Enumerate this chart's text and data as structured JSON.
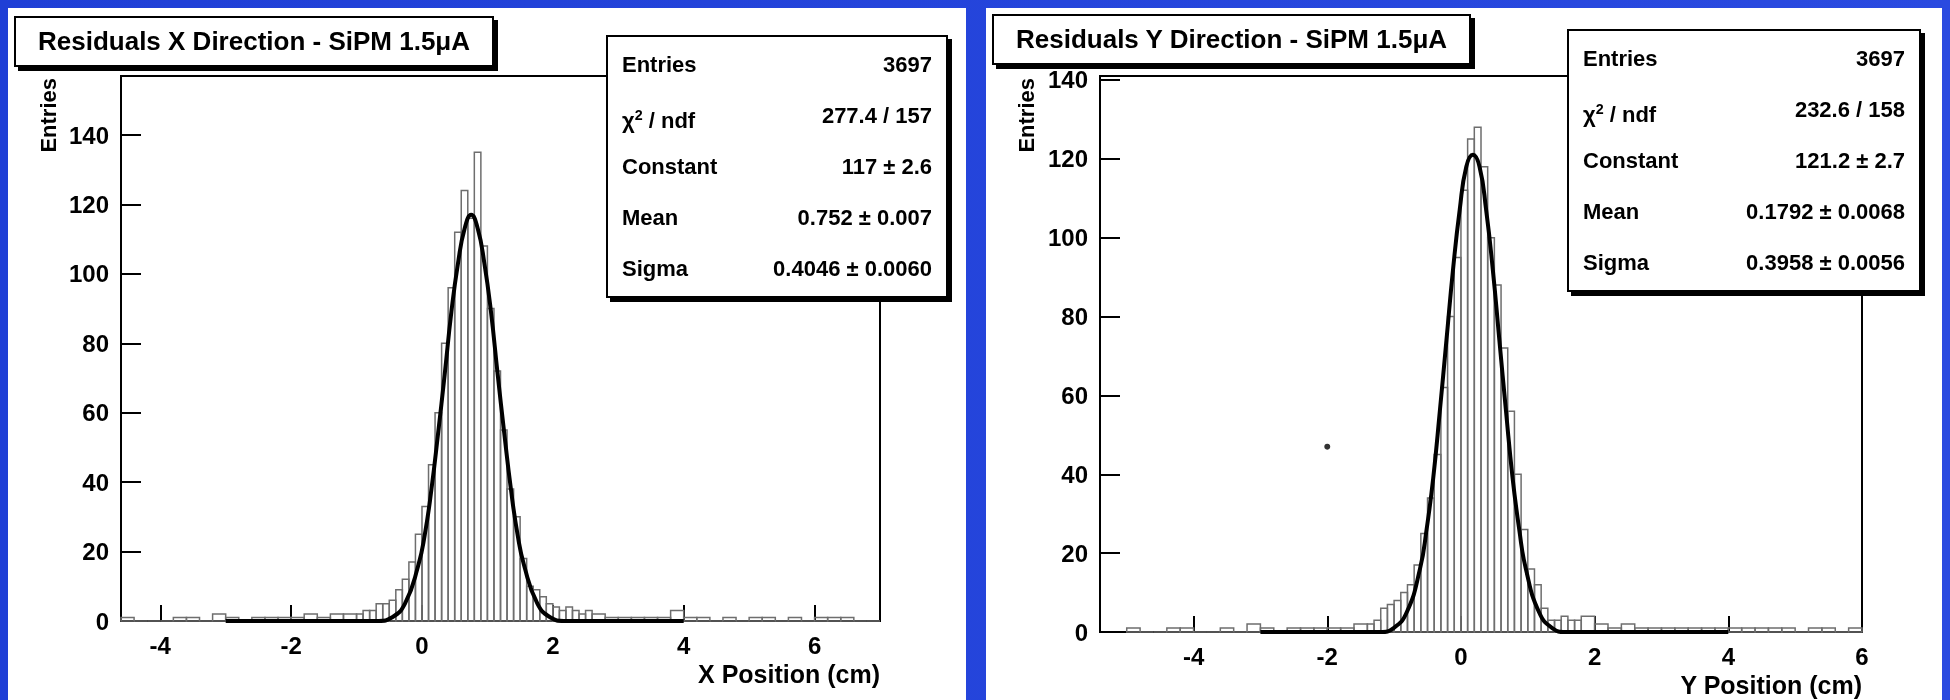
{
  "chart_data": [
    {
      "type": "histogram",
      "title": "Residuals X Direction - SiPM 1.5μA",
      "xlabel": "X Position (cm)",
      "ylabel": "Entries",
      "xlim": [
        -4.6,
        7.0
      ],
      "ylim": [
        0,
        157
      ],
      "xticks": [
        -4,
        -2,
        0,
        2,
        4,
        6
      ],
      "yticks": [
        0,
        20,
        40,
        60,
        80,
        100,
        120,
        140
      ],
      "grid": false,
      "annotations": [
        "Entries",
        "3697",
        "χ$^{2}$ / ndf",
        "277.4 / 157",
        "Constant",
        "117 ± 2.6",
        "Mean",
        "0.752 ± 0.007",
        "Sigma",
        "0.4046 ± 0.0060"
      ],
      "series": [
        {
          "color": "#6e6e6e",
          "bins": [
            -4.6,
            -4.4,
            -4.2,
            -4.0,
            -3.8,
            -3.6,
            -3.4,
            -3.2,
            -3.0,
            -2.8,
            -2.6,
            -2.4,
            -2.2,
            -2.0,
            -1.8,
            -1.6,
            -1.4,
            -1.2,
            -1.0,
            -0.9,
            -0.8,
            -0.7,
            -0.6,
            -0.5,
            -0.4,
            -0.3,
            -0.2,
            -0.1,
            0.0,
            0.1,
            0.2,
            0.3,
            0.4,
            0.5,
            0.6,
            0.7,
            0.8,
            0.9,
            1.0,
            1.1,
            1.2,
            1.3,
            1.4,
            1.5,
            1.6,
            1.7,
            1.8,
            1.9,
            2.0,
            2.1,
            2.2,
            2.3,
            2.4,
            2.5,
            2.6,
            2.8,
            3.0,
            3.2,
            3.4,
            3.6,
            3.8,
            4.0,
            4.2,
            4.4,
            4.6,
            4.8,
            5.0,
            5.2,
            5.4,
            5.6,
            5.8,
            6.0,
            6.2,
            6.4,
            6.6,
            6.8,
            7.0
          ],
          "values": [
            1,
            0,
            0,
            0,
            1,
            1,
            0,
            2,
            1,
            0,
            1,
            1,
            1,
            1,
            2,
            1,
            2,
            2,
            2,
            3,
            3,
            5,
            5,
            6,
            9,
            12,
            17,
            25,
            33,
            45,
            60,
            80,
            96,
            112,
            124,
            116,
            135,
            108,
            90,
            72,
            55,
            38,
            30,
            18,
            10,
            9,
            7,
            5,
            4,
            3,
            4,
            3,
            2,
            3,
            2,
            1,
            1,
            1,
            1,
            1,
            3,
            1,
            1,
            0,
            1,
            0,
            1,
            1,
            0,
            1,
            0,
            1,
            1,
            1,
            0,
            0
          ]
        },
        {
          "type": "line",
          "color": "#000000",
          "x": [
            -3.0,
            -0.866,
            -0.664,
            -0.462,
            -0.26,
            -0.057,
            0.044,
            0.145,
            0.246,
            0.347,
            0.449,
            0.55,
            0.651,
            0.752,
            0.853,
            0.954,
            1.055,
            1.157,
            1.258,
            1.359,
            1.46,
            1.561,
            1.764,
            1.966,
            2.168,
            2.37,
            4.0
          ],
          "values": [
            0,
            0,
            0,
            1,
            5,
            16,
            25,
            38,
            54,
            71,
            89,
            103,
            113,
            117,
            113,
            103,
            89,
            71,
            54,
            38,
            25,
            16,
            5,
            1,
            0,
            0,
            0
          ]
        }
      ]
    },
    {
      "type": "histogram",
      "title": "Residuals Y Direction - SiPM 1.5μA",
      "xlabel": "Y Position (cm)",
      "ylabel": "Entries",
      "xlim": [
        -5.4,
        6.0
      ],
      "ylim": [
        0,
        141
      ],
      "xticks": [
        -4,
        -2,
        0,
        2,
        4,
        6
      ],
      "yticks": [
        0,
        20,
        40,
        60,
        80,
        100,
        120,
        140
      ],
      "grid": false,
      "annotations": [
        "Entries",
        "3697",
        "χ$^{2}$ / ndf",
        "232.6 / 158",
        "Constant",
        "121.2 ± 2.7",
        "Mean",
        "0.1792 ± 0.0068",
        "Sigma",
        "0.3958 ± 0.0056"
      ],
      "series": [
        {
          "color": "#6e6e6e",
          "bins": [
            -5.0,
            -4.8,
            -4.6,
            -4.4,
            -4.2,
            -4.0,
            -3.8,
            -3.6,
            -3.4,
            -3.2,
            -3.0,
            -2.8,
            -2.6,
            -2.4,
            -2.2,
            -2.0,
            -1.8,
            -1.6,
            -1.4,
            -1.3,
            -1.2,
            -1.1,
            -1.0,
            -0.9,
            -0.8,
            -0.7,
            -0.6,
            -0.5,
            -0.4,
            -0.3,
            -0.2,
            -0.1,
            0.0,
            0.1,
            0.2,
            0.3,
            0.4,
            0.5,
            0.6,
            0.7,
            0.8,
            0.9,
            1.0,
            1.1,
            1.2,
            1.3,
            1.4,
            1.5,
            1.6,
            1.7,
            1.8,
            2.0,
            2.2,
            2.4,
            2.6,
            2.8,
            3.0,
            3.2,
            3.4,
            3.6,
            3.8,
            4.0,
            4.2,
            4.4,
            4.6,
            4.8,
            5.0,
            5.2,
            5.4,
            5.6,
            5.8,
            6.0
          ],
          "values": [
            1,
            0,
            0,
            1,
            1,
            0,
            0,
            1,
            0,
            2,
            1,
            0,
            1,
            1,
            1,
            1,
            1,
            2,
            2,
            3,
            6,
            7,
            8,
            10,
            12,
            17,
            25,
            34,
            45,
            62,
            80,
            95,
            112,
            125,
            128,
            118,
            100,
            88,
            72,
            56,
            40,
            26,
            16,
            12,
            6,
            3,
            3,
            4,
            3,
            3,
            4,
            2,
            1,
            2,
            1,
            1,
            1,
            1,
            1,
            1,
            1,
            1,
            1,
            1,
            1,
            1,
            0,
            1,
            1,
            0,
            1
          ]
        },
        {
          "type": "line",
          "color": "#000000",
          "x": [
            -3.0,
            -1.404,
            -1.206,
            -1.008,
            -0.811,
            -0.613,
            -0.514,
            -0.415,
            -0.316,
            -0.217,
            -0.118,
            -0.019,
            0.08,
            0.179,
            0.278,
            0.377,
            0.476,
            0.575,
            0.674,
            0.773,
            0.872,
            0.971,
            1.169,
            1.366,
            1.564,
            1.762,
            4.0
          ],
          "values": [
            0,
            0,
            0,
            1,
            5,
            16,
            26,
            39,
            56,
            74,
            92,
            107,
            118,
            121,
            118,
            107,
            92,
            74,
            56,
            39,
            26,
            16,
            5,
            1,
            0,
            0,
            0
          ]
        },
        {
          "type": "scatter",
          "color": "#000000",
          "marker": "circle",
          "x": [
            -2.0
          ],
          "values": [
            47
          ]
        }
      ]
    }
  ]
}
